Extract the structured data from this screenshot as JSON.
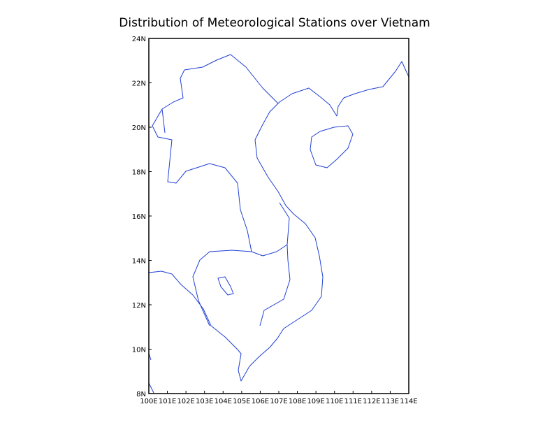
{
  "chart_data": {
    "type": "map",
    "title": "Distribution of Meteorological Stations over Vietnam",
    "xlim": [
      100,
      114
    ],
    "ylim": [
      8,
      24
    ],
    "xticks": [
      {
        "value": 100,
        "label": "100E"
      },
      {
        "value": 101,
        "label": "101E"
      },
      {
        "value": 102,
        "label": "102E"
      },
      {
        "value": 103,
        "label": "103E"
      },
      {
        "value": 104,
        "label": "104E"
      },
      {
        "value": 105,
        "label": "105E"
      },
      {
        "value": 106,
        "label": "106E"
      },
      {
        "value": 107,
        "label": "107E"
      },
      {
        "value": 108,
        "label": "108E"
      },
      {
        "value": 109,
        "label": "109E"
      },
      {
        "value": 110,
        "label": "110E"
      },
      {
        "value": 111,
        "label": "111E"
      },
      {
        "value": 112,
        "label": "112E"
      },
      {
        "value": 113,
        "label": "113E"
      },
      {
        "value": 114,
        "label": "114E"
      }
    ],
    "yticks": [
      {
        "value": 8,
        "label": "8N"
      },
      {
        "value": 10,
        "label": "10N"
      },
      {
        "value": 12,
        "label": "12N"
      },
      {
        "value": 14,
        "label": "14N"
      },
      {
        "value": 16,
        "label": "16N"
      },
      {
        "value": 18,
        "label": "18N"
      },
      {
        "value": 20,
        "label": "20N"
      },
      {
        "value": 22,
        "label": "22N"
      },
      {
        "value": 24,
        "label": "24N"
      }
    ]
  }
}
